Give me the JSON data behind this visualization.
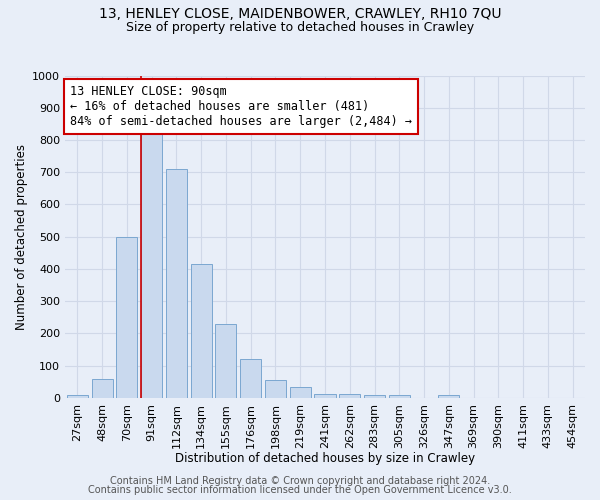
{
  "title": "13, HENLEY CLOSE, MAIDENBOWER, CRAWLEY, RH10 7QU",
  "subtitle": "Size of property relative to detached houses in Crawley",
  "xlabel": "Distribution of detached houses by size in Crawley",
  "ylabel": "Number of detached properties",
  "bar_labels": [
    "27sqm",
    "48sqm",
    "70sqm",
    "91sqm",
    "112sqm",
    "134sqm",
    "155sqm",
    "176sqm",
    "198sqm",
    "219sqm",
    "241sqm",
    "262sqm",
    "283sqm",
    "305sqm",
    "326sqm",
    "347sqm",
    "369sqm",
    "390sqm",
    "411sqm",
    "433sqm",
    "454sqm"
  ],
  "bar_values": [
    8,
    60,
    500,
    830,
    710,
    415,
    230,
    120,
    57,
    33,
    13,
    13,
    10,
    10,
    0,
    8,
    0,
    0,
    0,
    0,
    0
  ],
  "bar_color": "#c9d9ee",
  "bar_edge_color": "#7ba7d0",
  "vline_x_index": 3,
  "vline_color": "#cc0000",
  "annotation_text": "13 HENLEY CLOSE: 90sqm\n← 16% of detached houses are smaller (481)\n84% of semi-detached houses are larger (2,484) →",
  "annotation_box_facecolor": "#ffffff",
  "annotation_box_edgecolor": "#cc0000",
  "ylim": [
    0,
    1000
  ],
  "yticks": [
    0,
    100,
    200,
    300,
    400,
    500,
    600,
    700,
    800,
    900,
    1000
  ],
  "footer1": "Contains HM Land Registry data © Crown copyright and database right 2024.",
  "footer2": "Contains public sector information licensed under the Open Government Licence v3.0.",
  "bg_color": "#e8eef8",
  "plot_bg_color": "#e8eef8",
  "grid_color": "#d0d8e8",
  "title_fontsize": 10,
  "subtitle_fontsize": 9,
  "axis_label_fontsize": 8.5,
  "tick_fontsize": 8,
  "annot_fontsize": 8.5,
  "footer_fontsize": 7
}
